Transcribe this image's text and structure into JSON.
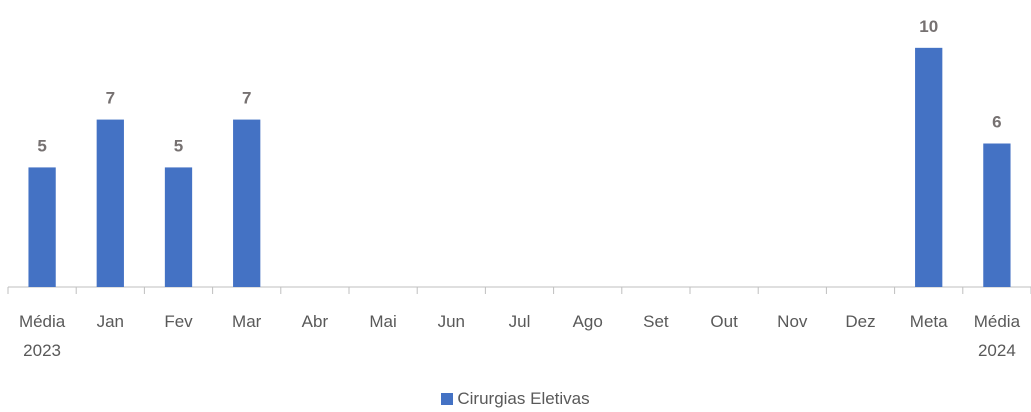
{
  "chart_data": {
    "type": "bar",
    "categories": [
      "Média 2023",
      "Jan",
      "Fev",
      "Mar",
      "Abr",
      "Mai",
      "Jun",
      "Jul",
      "Ago",
      "Set",
      "Out",
      "Nov",
      "Dez",
      "Meta",
      "Média 2024"
    ],
    "series": [
      {
        "name": "Cirurgias Eletivas",
        "color": "#4472c4",
        "values": [
          5,
          7,
          5,
          7,
          null,
          null,
          null,
          null,
          null,
          null,
          null,
          null,
          null,
          10,
          6
        ]
      }
    ],
    "ylim": [
      0,
      12
    ]
  }
}
